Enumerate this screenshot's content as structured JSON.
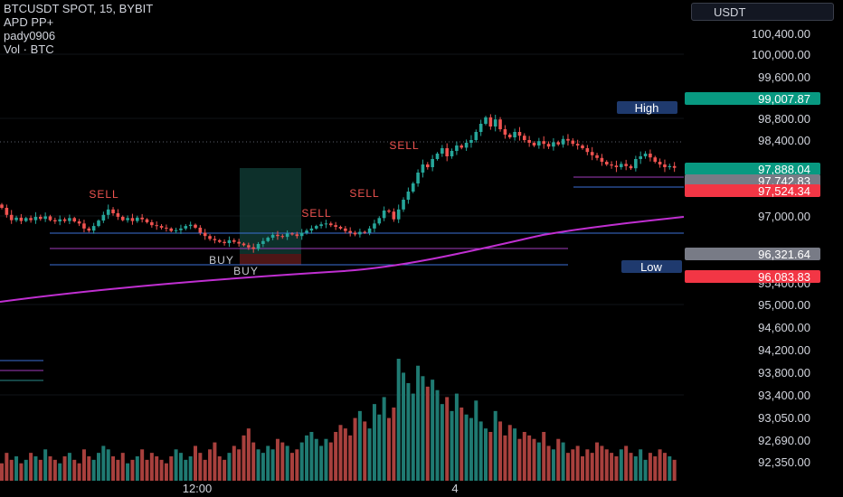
{
  "header": {
    "symbol": "BTCUSDT SPOT, 15, BYBIT",
    "indicator": "APD PP+",
    "author": "pady0906",
    "volume_label": "Vol · BTC"
  },
  "currency_button": "USDT",
  "colors": {
    "up": "#26a69a",
    "down": "#ef5350",
    "ma": "#c02fd1",
    "level_blue": "#3b6fd6",
    "level_purple": "#a13bbd",
    "high_tag": "#1f3a6e",
    "green_badge": "#089981",
    "red_badge": "#f23645",
    "grey_badge": "#787b86"
  },
  "chart_data": {
    "type": "candlestick",
    "y_axis_ticks": [
      "100,400.00",
      "100,000.00",
      "99,600.00",
      "98,800.00",
      "98,400.00",
      "97,000.00",
      "95,400.00",
      "95,000.00",
      "94,600.00",
      "94,200.00",
      "93,800.00",
      "93,400.00",
      "93,050.00",
      "92,690.00",
      "92,350.00"
    ],
    "price_badges": [
      {
        "value": "99,007.87",
        "color": "green"
      },
      {
        "value": "97,888.04",
        "color": "green"
      },
      {
        "value": "97,742.83",
        "color": "grey"
      },
      {
        "value": "97,524.34",
        "color": "red"
      },
      {
        "value": "96,321.64",
        "color": "grey"
      },
      {
        "value": "96,083.83",
        "color": "red"
      }
    ],
    "tags": {
      "high": "High",
      "low": "Low"
    },
    "x_axis_labels": [
      "12:00",
      "4"
    ],
    "signals": [
      {
        "label": "SELL",
        "type": "sell"
      },
      {
        "label": "SELL",
        "type": "sell"
      },
      {
        "label": "SELL",
        "type": "sell"
      },
      {
        "label": "SELL",
        "type": "sell"
      },
      {
        "label": "BUY",
        "type": "buy"
      },
      {
        "label": "BUY",
        "type": "buy"
      }
    ],
    "close": [
      97150,
      97020,
      96900,
      96960,
      96880,
      96950,
      96900,
      96980,
      96930,
      96990,
      96900,
      96870,
      96920,
      96880,
      96950,
      96870,
      96820,
      96700,
      96650,
      96760,
      96890,
      97020,
      97120,
      97050,
      96980,
      96900,
      96950,
      96880,
      96960,
      96920,
      96850,
      96780,
      96760,
      96720,
      96700,
      96640,
      96660,
      96700,
      96760,
      96790,
      96720,
      96600,
      96520,
      96450,
      96420,
      96380,
      96350,
      96420,
      96380,
      96340,
      96300,
      96250,
      96210,
      96330,
      96400,
      96480,
      96550,
      96520,
      96500,
      96580,
      96560,
      96520,
      96600,
      96650,
      96700,
      96760,
      96800,
      96820,
      96780,
      96740,
      96700,
      96640,
      96600,
      96560,
      96620,
      96600,
      96700,
      96820,
      96950,
      97100,
      97080,
      96920,
      97120,
      97300,
      97450,
      97600,
      97800,
      97950,
      97900,
      98050,
      98150,
      98250,
      98100,
      98200,
      98300,
      98260,
      98350,
      98400,
      98550,
      98700,
      98820,
      98650,
      98780,
      98600,
      98500,
      98450,
      98550,
      98480,
      98400,
      98350,
      98300,
      98380,
      98330,
      98280,
      98360,
      98320,
      98420,
      98390,
      98330,
      98300,
      98250,
      98180,
      98120,
      98070,
      98000,
      97950,
      97930,
      97900,
      97960,
      97920,
      97880,
      98050,
      98100,
      98150,
      98080,
      98000,
      97950,
      97900,
      97920,
      97888
    ],
    "volume": [
      5,
      8,
      6,
      7,
      5,
      6,
      8,
      7,
      6,
      9,
      7,
      6,
      5,
      7,
      8,
      6,
      5,
      9,
      7,
      6,
      8,
      10,
      9,
      7,
      6,
      8,
      5,
      6,
      7,
      9,
      6,
      8,
      7,
      6,
      5,
      7,
      9,
      8,
      6,
      7,
      10,
      8,
      6,
      9,
      11,
      7,
      6,
      8,
      10,
      9,
      13,
      15,
      11,
      9,
      8,
      10,
      9,
      12,
      11,
      10,
      8,
      9,
      11,
      13,
      14,
      12,
      10,
      12,
      11,
      14,
      16,
      15,
      13,
      18,
      20,
      17,
      15,
      22,
      19,
      24,
      18,
      21,
      35,
      31,
      28,
      25,
      33,
      30,
      27,
      29,
      26,
      22,
      24,
      20,
      25,
      21,
      19,
      18,
      23,
      17,
      15,
      14,
      20,
      17,
      13,
      16,
      15,
      12,
      14,
      13,
      12,
      11,
      14,
      10,
      9,
      12,
      11,
      8,
      9,
      10,
      7,
      9,
      8,
      11,
      10,
      9,
      8,
      7,
      9,
      10,
      8,
      7,
      9,
      6,
      8,
      7,
      9,
      8,
      7,
      6
    ]
  }
}
